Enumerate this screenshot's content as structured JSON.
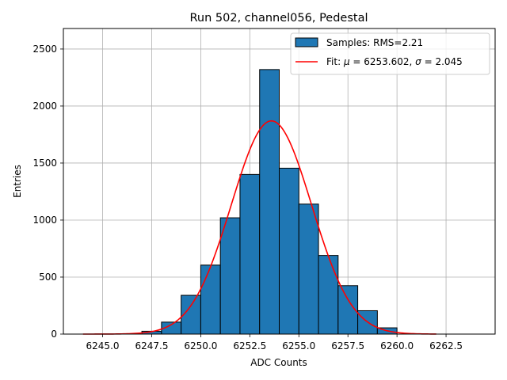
{
  "chart_data": {
    "type": "bar",
    "title": "Run 502, channel056, Pedestal",
    "xlabel": "ADC Counts",
    "ylabel": "Entries",
    "xlim": [
      6243.0,
      6265.0
    ],
    "ylim": [
      0,
      2680
    ],
    "grid": true,
    "legend_position": "top-right",
    "x_ticks": [
      {
        "value": 6245,
        "label": "6245.0"
      },
      {
        "value": 6247.5,
        "label": "6247.5"
      },
      {
        "value": 6250,
        "label": "6250.0"
      },
      {
        "value": 6252.5,
        "label": "6252.5"
      },
      {
        "value": 6255,
        "label": "6255.0"
      },
      {
        "value": 6257.5,
        "label": "6257.5"
      },
      {
        "value": 6260,
        "label": "6260.0"
      },
      {
        "value": 6262.5,
        "label": "6262.5"
      }
    ],
    "y_ticks": [
      {
        "value": 0,
        "label": "0"
      },
      {
        "value": 500,
        "label": "500"
      },
      {
        "value": 1000,
        "label": "1000"
      },
      {
        "value": 1500,
        "label": "1500"
      },
      {
        "value": 2000,
        "label": "2000"
      },
      {
        "value": 2500,
        "label": "2500"
      }
    ],
    "histogram": {
      "name": "Samples: RMS=2.21",
      "color": "#1f77b4",
      "edge_color": "#000000",
      "bin_edges": [
        6247.0,
        6248.0,
        6249.0,
        6250.0,
        6251.0,
        6252.0,
        6253.0,
        6254.0,
        6255.0,
        6256.0,
        6257.0,
        6258.0,
        6259.0,
        6260.0
      ],
      "counts": [
        25,
        105,
        340,
        605,
        1020,
        1400,
        2320,
        1455,
        1140,
        690,
        425,
        205,
        55
      ]
    },
    "fit": {
      "name": "Fit: μ = 6253.602, σ = 2.045",
      "color": "#ff0000",
      "mu": 6253.602,
      "sigma": 2.045,
      "peak": 1870,
      "x_range": [
        6244.0,
        6262.0
      ]
    },
    "legend": [
      {
        "prefix": "Samples: RMS=2.21",
        "mu_sym": "",
        "mu_val": "",
        "sigma_sym": "",
        "sigma_val": ""
      },
      {
        "prefix": "Fit: ",
        "mu_sym": "μ",
        "mu_val": " = 6253.602, ",
        "sigma_sym": "σ",
        "sigma_val": " = 2.045"
      }
    ]
  }
}
